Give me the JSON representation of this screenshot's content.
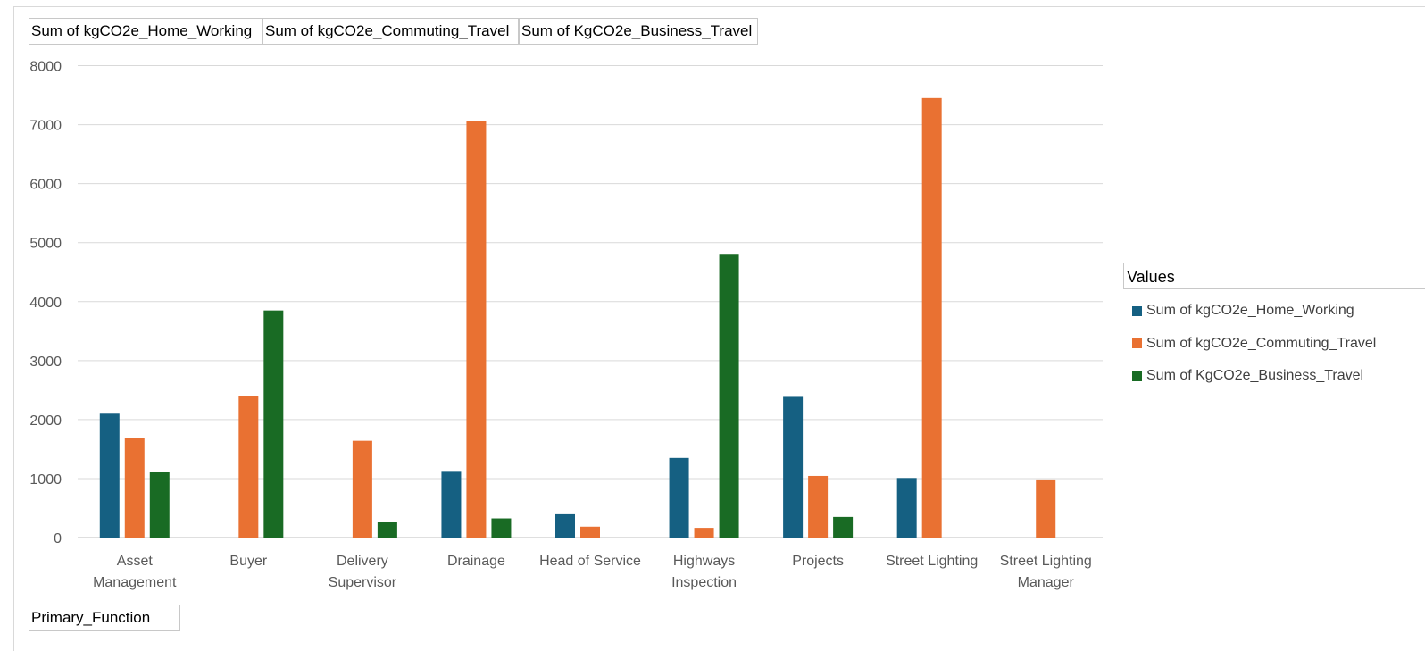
{
  "field_buttons": [
    {
      "label": "Sum of kgCO2e_Home_Working"
    },
    {
      "label": "Sum of kgCO2e_Commuting_Travel"
    },
    {
      "label": "Sum of KgCO2e_Business_Travel"
    }
  ],
  "axis_field_button": {
    "label": "Primary_Function"
  },
  "legend": {
    "title": "Values"
  },
  "chart_data": {
    "type": "bar",
    "title": "",
    "xlabel": "",
    "ylabel": "",
    "ylim": [
      0,
      8000
    ],
    "yticks": [
      0,
      1000,
      2000,
      3000,
      4000,
      5000,
      6000,
      7000,
      8000
    ],
    "grid": true,
    "legend_position": "right",
    "categories": [
      [
        "Asset",
        "Management"
      ],
      [
        "Buyer"
      ],
      [
        "Delivery",
        "Supervisor"
      ],
      [
        "Drainage"
      ],
      [
        "Head of Service"
      ],
      [
        "Highways",
        "Inspection"
      ],
      [
        "Projects"
      ],
      [
        "Street Lighting"
      ],
      [
        "Street Lighting",
        "Manager"
      ]
    ],
    "series": [
      {
        "name": "Sum of kgCO2e_Home_Working",
        "color": "#156082",
        "values": [
          2100,
          null,
          null,
          1130,
          395,
          1350,
          2385,
          1010,
          null
        ]
      },
      {
        "name": "Sum of kgCO2e_Commuting_Travel",
        "color": "#e97132",
        "values": [
          1695,
          2395,
          1640,
          7060,
          185,
          165,
          1045,
          7450,
          985
        ]
      },
      {
        "name": "Sum of KgCO2e_Business_Travel",
        "color": "#196b24",
        "values": [
          1120,
          3850,
          270,
          325,
          null,
          4810,
          350,
          null,
          null
        ]
      }
    ]
  }
}
